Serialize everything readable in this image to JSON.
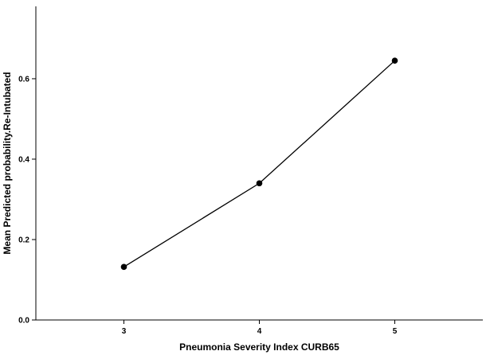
{
  "chart_data": {
    "type": "line",
    "title": "",
    "xlabel": "Pneumonia Severity Index CURB65",
    "ylabel": "Mean Predicted probability.Re-Intubated",
    "x": [
      3,
      4,
      5
    ],
    "x_tick_labels": [
      "3",
      "4",
      "5"
    ],
    "xlim": [
      2.35,
      5.65
    ],
    "series": [
      {
        "values": [
          0.132,
          0.34,
          0.645
        ]
      }
    ],
    "y_ticks": [
      0.0,
      0.2,
      0.4,
      0.6
    ],
    "y_tick_labels": [
      "0.0",
      "0.2",
      "0.4",
      "0.6"
    ],
    "ylim": [
      0.0,
      0.78
    ],
    "grid": false,
    "legend": "none",
    "colors": {
      "line": "#000000",
      "marker": "#000000",
      "axis": "#000000",
      "background": "#ffffff"
    }
  }
}
